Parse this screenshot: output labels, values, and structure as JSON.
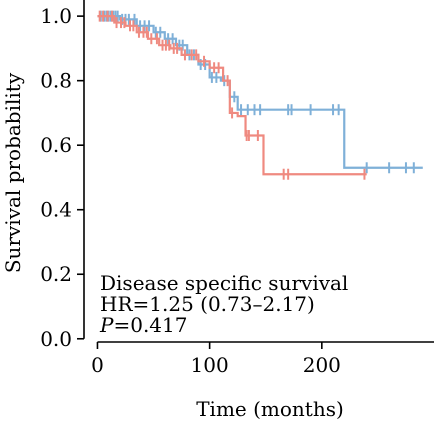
{
  "chart_data": {
    "type": "line",
    "subtype": "kaplan-meier step curve with censor marks",
    "xlabel": "Time (months)",
    "ylabel": "Survival probability",
    "xlim": [
      -12,
      300
    ],
    "ylim": [
      -0.01,
      1.05
    ],
    "xticks": [
      0,
      100,
      200
    ],
    "yticks": [
      0.0,
      0.2,
      0.4,
      0.6,
      0.8,
      1.0
    ],
    "ytick_labels": [
      "0.0",
      "0.2",
      "0.4",
      "0.6",
      "0.8",
      "1.0"
    ],
    "grid": false,
    "series": [
      {
        "color": "#7fb0d8",
        "steps": [
          [
            0,
            1.0
          ],
          [
            20,
            0.99
          ],
          [
            35,
            0.97
          ],
          [
            50,
            0.95
          ],
          [
            60,
            0.93
          ],
          [
            70,
            0.91
          ],
          [
            80,
            0.88
          ],
          [
            90,
            0.85
          ],
          [
            100,
            0.81
          ],
          [
            110,
            0.8
          ],
          [
            118,
            0.75
          ],
          [
            125,
            0.71
          ],
          [
            220,
            0.53
          ],
          [
            290,
            0.53
          ]
        ],
        "censor_x": [
          3,
          6,
          8,
          10,
          12,
          14,
          16,
          18,
          22,
          25,
          28,
          33,
          38,
          42,
          46,
          52,
          56,
          63,
          67,
          73,
          76,
          82,
          86,
          92,
          96,
          102,
          106,
          113,
          122,
          128,
          134,
          140,
          145,
          170,
          173,
          190,
          210,
          215,
          240,
          260,
          275,
          282
        ]
      },
      {
        "color": "#ef8a80",
        "steps": [
          [
            0,
            1.0
          ],
          [
            15,
            0.98
          ],
          [
            25,
            0.97
          ],
          [
            35,
            0.95
          ],
          [
            45,
            0.93
          ],
          [
            55,
            0.91
          ],
          [
            65,
            0.9
          ],
          [
            75,
            0.88
          ],
          [
            90,
            0.86
          ],
          [
            100,
            0.84
          ],
          [
            112,
            0.8
          ],
          [
            118,
            0.7
          ],
          [
            125,
            0.69
          ],
          [
            132,
            0.63
          ],
          [
            148,
            0.51
          ],
          [
            240,
            0.51
          ]
        ],
        "censor_x": [
          2,
          5,
          9,
          13,
          17,
          21,
          24,
          29,
          32,
          37,
          41,
          44,
          48,
          53,
          58,
          61,
          64,
          68,
          71,
          78,
          84,
          88,
          95,
          104,
          108,
          116,
          120,
          133,
          135,
          143,
          166,
          170,
          238
        ]
      }
    ],
    "annotations": {
      "line1": "Disease specific survival",
      "line2": "HR=1.25 (0.73–2.17)",
      "line3_italic": "P",
      "line3_rest": "=0.417"
    }
  }
}
